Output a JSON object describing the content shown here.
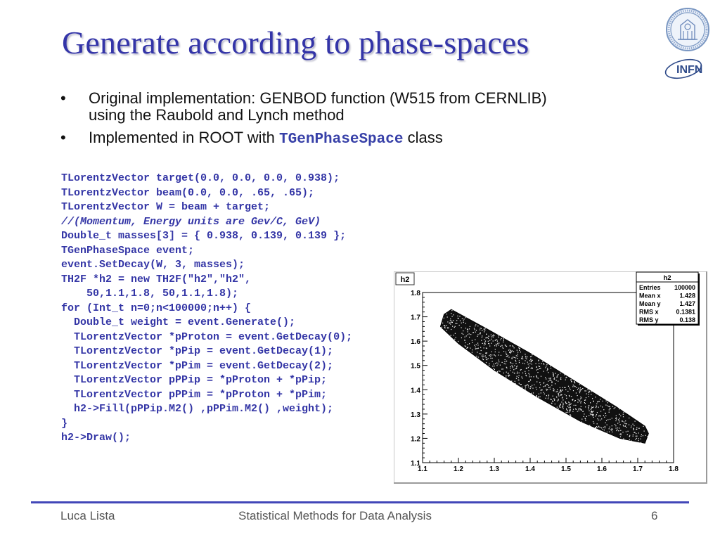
{
  "title": "Generate according to phase-spaces",
  "bullets": [
    {
      "marker": "•",
      "line1": "Original implementation: GENBOD function (W515 from CERNLIB)",
      "line2": "using the Raubold and Lynch method"
    },
    {
      "marker": "•",
      "text_before": "Implemented in ROOT with ",
      "code": "TGenPhaseSpace",
      "text_after": " class"
    }
  ],
  "code_lines": [
    "TLorentzVector target(0.0, 0.0, 0.0, 0.938);",
    "TLorentzVector beam(0.0, 0.0, .65, .65);",
    "TLorentzVector W = beam + target;",
    "//(Momentum, Energy units are Gev/C, GeV)",
    "Double_t masses[3] = { 0.938, 0.139, 0.139 };",
    "TGenPhaseSpace event;",
    "event.SetDecay(W, 3, masses);",
    "TH2F *h2 = new TH2F(\"h2\",\"h2\",",
    "    50,1.1,1.8, 50,1.1,1.8);",
    "for (Int_t n=0;n<100000;n++) {",
    "  Double_t weight = event.Generate();",
    "  TLorentzVector *pProton = event.GetDecay(0);",
    "  TLorentzVector *pPip = event.GetDecay(1);",
    "  TLorentzVector *pPim = event.GetDecay(2);",
    "  TLorentzVector pPPip = *pProton + *pPip;",
    "  TLorentzVector pPPim = *pProton + *pPim;",
    "  h2->Fill(pPPip.M2() ,pPPim.M2() ,weight);",
    "}",
    "h2->Draw();"
  ],
  "logo": {
    "infn_text": "INFN",
    "seal_color": "#7a97c2",
    "infn_color": "#2f4b8a"
  },
  "colors": {
    "title": "#3334a8",
    "code": "#3436a6",
    "footer_line": "#4247b8"
  },
  "chart_data": {
    "type": "scatter",
    "hist_name": "h2",
    "xlim": [
      1.1,
      1.8
    ],
    "ylim": [
      1.1,
      1.8
    ],
    "x_ticks": [
      "1.1",
      "1.2",
      "1.3",
      "1.4",
      "1.5",
      "1.6",
      "1.7",
      "1.8"
    ],
    "y_ticks": [
      "1.1",
      "1.2",
      "1.3",
      "1.4",
      "1.5",
      "1.6",
      "1.7",
      "1.8"
    ],
    "stats": {
      "title": "h2",
      "rows": [
        {
          "label": "Entries",
          "value": "100000"
        },
        {
          "label": "Mean x",
          "value": "1.428"
        },
        {
          "label": "Mean y",
          "value": "1.427"
        },
        {
          "label": "RMS x",
          "value": "0.1381"
        },
        {
          "label": "RMS y",
          "value": "0.138"
        }
      ]
    },
    "region_boundary": [
      [
        1.18,
        1.73
      ],
      [
        1.28,
        1.65
      ],
      [
        1.4,
        1.55
      ],
      [
        1.52,
        1.44
      ],
      [
        1.64,
        1.33
      ],
      [
        1.72,
        1.25
      ],
      [
        1.73,
        1.22
      ],
      [
        1.72,
        1.18
      ],
      [
        1.65,
        1.2
      ],
      [
        1.54,
        1.27
      ],
      [
        1.42,
        1.37
      ],
      [
        1.3,
        1.48
      ],
      [
        1.2,
        1.59
      ],
      [
        1.15,
        1.66
      ],
      [
        1.16,
        1.71
      ]
    ],
    "legend_position": "top-right",
    "grid": false
  },
  "footer": {
    "author": "Luca Lista",
    "course": "Statistical Methods for Data Analysis",
    "page": "6"
  }
}
